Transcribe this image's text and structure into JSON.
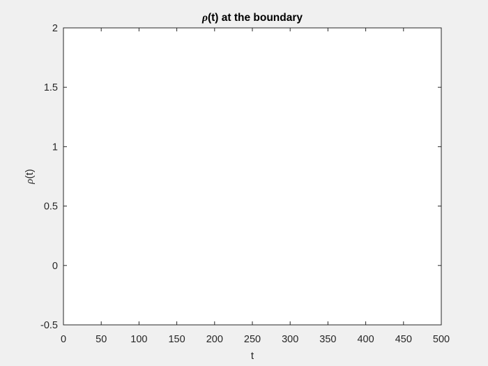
{
  "chart_data": {
    "type": "line",
    "title_symbol": "ρ",
    "title_rest": "(t) at the boundary",
    "xlabel": "t",
    "ylabel_symbol": "ρ",
    "ylabel_rest": "(t)",
    "xlim": [
      0,
      500
    ],
    "ylim": [
      -0.5,
      2
    ],
    "x_ticks": [
      0,
      50,
      100,
      150,
      200,
      250,
      300,
      350,
      400,
      450,
      500
    ],
    "x_tick_labels": [
      "0",
      "50",
      "100",
      "150",
      "200",
      "250",
      "300",
      "350",
      "400",
      "450",
      "500"
    ],
    "y_ticks": [
      -0.5,
      0,
      0.5,
      1,
      1.5,
      2
    ],
    "y_tick_labels": [
      "-0.5",
      "0",
      "0.5",
      "1",
      "1.5",
      "2"
    ],
    "grid": false,
    "series": []
  },
  "colors": {
    "figure_background": "#f0f0f0",
    "axes_background": "#ffffff",
    "axis_color": "#262626"
  }
}
